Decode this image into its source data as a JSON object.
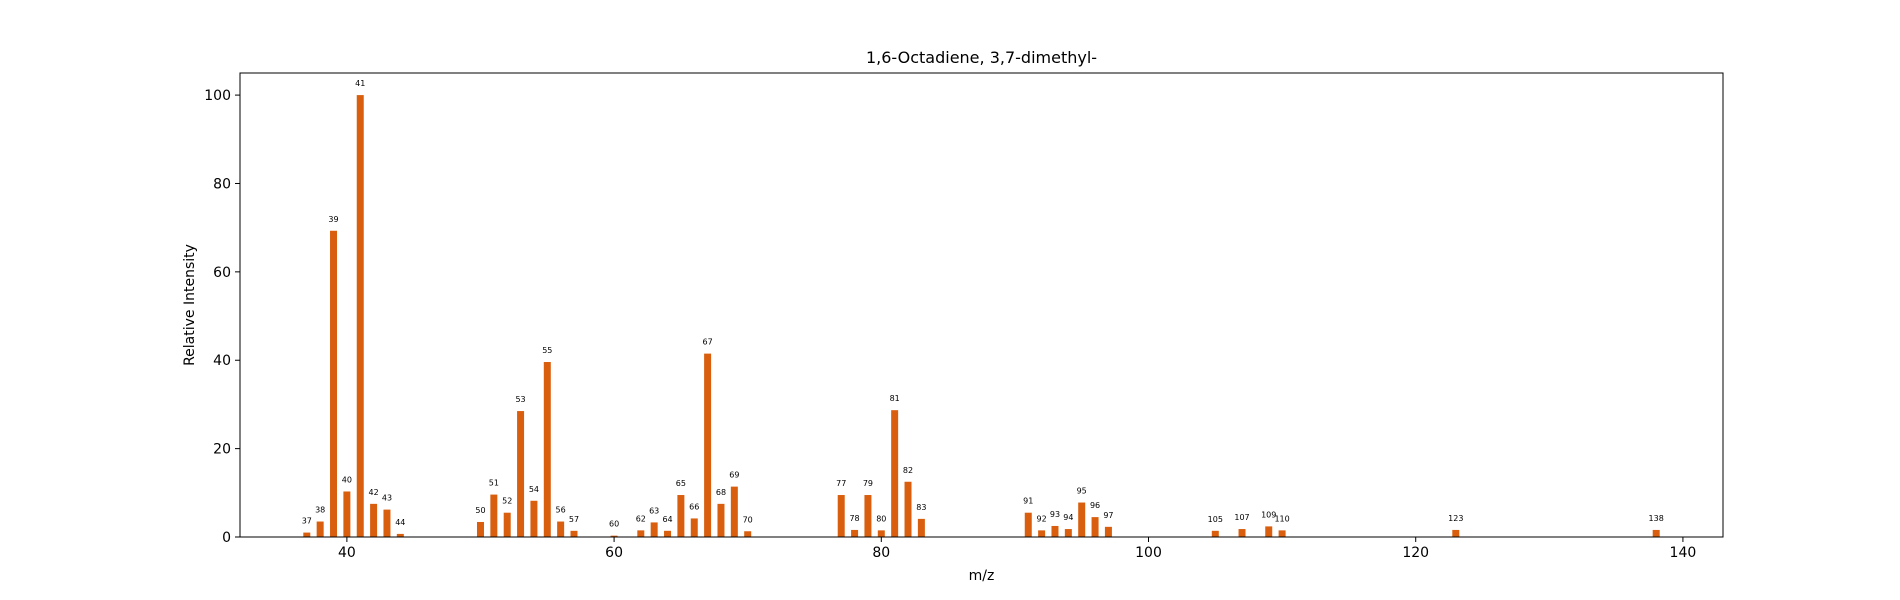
{
  "chart_data": {
    "type": "bar",
    "title": "1,6-Octadiene, 3,7-dimethyl-",
    "xlabel": "m/z",
    "ylabel": "Relative Intensity",
    "xlim": [
      32,
      143
    ],
    "ylim": [
      0,
      105
    ],
    "xticks": [
      40,
      60,
      80,
      100,
      120,
      140
    ],
    "yticks": [
      0,
      20,
      40,
      60,
      80,
      100
    ],
    "bar_color": "#d95f0e",
    "grid": false,
    "legend": false,
    "x": [
      37,
      38,
      39,
      40,
      41,
      42,
      43,
      44,
      50,
      51,
      52,
      53,
      54,
      55,
      56,
      57,
      60,
      62,
      63,
      64,
      65,
      66,
      67,
      68,
      69,
      70,
      77,
      78,
      79,
      80,
      81,
      82,
      83,
      91,
      92,
      93,
      94,
      95,
      96,
      97,
      105,
      107,
      109,
      110,
      123,
      138
    ],
    "values": [
      1,
      3.5,
      69.3,
      10.3,
      100,
      7.5,
      6.2,
      0.7,
      3.4,
      9.6,
      5.5,
      28.5,
      8.2,
      39.6,
      3.5,
      1.4,
      0.3,
      1.5,
      3.3,
      1.4,
      9.5,
      4.2,
      41.5,
      7.5,
      11.4,
      1.3,
      9.5,
      1.6,
      9.5,
      1.5,
      28.7,
      12.5,
      4.1,
      5.5,
      1.5,
      2.5,
      1.8,
      7.8,
      4.5,
      2.3,
      1.4,
      1.8,
      2.4,
      1.5,
      1.6,
      1.6
    ],
    "labels": [
      "37",
      "38",
      "39",
      "40",
      "41",
      "42",
      "43",
      "44",
      "50",
      "51",
      "52",
      "53",
      "54",
      "55",
      "56",
      "57",
      "60",
      "62",
      "63",
      "64",
      "65",
      "66",
      "67",
      "68",
      "69",
      "70",
      "77",
      "78",
      "79",
      "80",
      "81",
      "82",
      "83",
      "91",
      "92",
      "93",
      "94",
      "95",
      "96",
      "97",
      "105",
      "107",
      "109",
      "110",
      "123",
      "138"
    ]
  }
}
